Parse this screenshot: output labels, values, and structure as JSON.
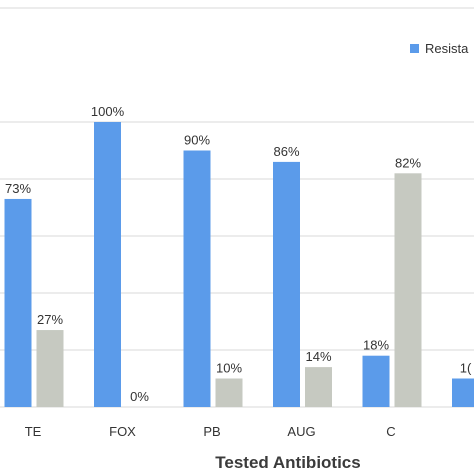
{
  "chart_data": {
    "type": "bar",
    "categories": [
      "TE",
      "FOX",
      "PB",
      "AUG",
      "C",
      ""
    ],
    "series": [
      {
        "name": "Resista",
        "color": "#5b9bea",
        "values": [
          73,
          100,
          90,
          86,
          18,
          10
        ]
      },
      {
        "color": "#c6c9c1",
        "values": [
          27,
          0,
          10,
          14,
          82,
          null
        ]
      }
    ],
    "value_labels": [
      [
        "73%",
        "100%",
        "90%",
        "86%",
        "18%",
        "1("
      ],
      [
        "27%",
        "0%",
        "10%",
        "14%",
        "82%",
        ""
      ]
    ],
    "xlabel": "Tested Antibiotics",
    "ylabel": "",
    "ylim": [
      0,
      100
    ],
    "grid": true,
    "legend": "top-right"
  }
}
